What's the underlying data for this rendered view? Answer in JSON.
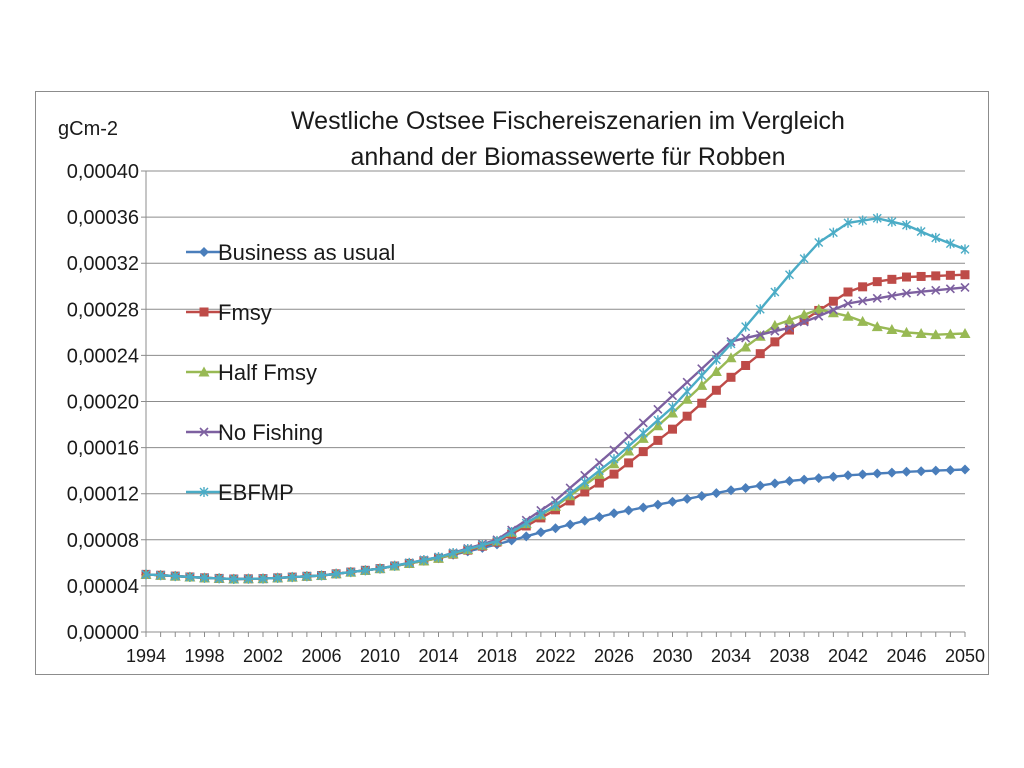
{
  "chart_data": {
    "type": "line",
    "title": [
      "Westliche Ostsee Fischereiszenarien im Vergleich",
      "anhand der Biomassewerte  für Robben"
    ],
    "unit_label": "gCm-2",
    "xlabel": "",
    "ylabel": "gCm-2",
    "x_tick_labels": [
      "1994",
      "1998",
      "2002",
      "2006",
      "2010",
      "2014",
      "2018",
      "2022",
      "2026",
      "2030",
      "2034",
      "2038",
      "2042",
      "2046",
      "2050"
    ],
    "y_tick_labels": [
      "0,00000",
      "0,00004",
      "0,00008",
      "0,00012",
      "0,00016",
      "0,00020",
      "0,00024",
      "0,00028",
      "0,00032",
      "0,00036",
      "0,00040"
    ],
    "xlim": [
      1994,
      2050
    ],
    "ylim": [
      0,
      0.0004
    ],
    "grid": true,
    "legend_position": "left",
    "series": [
      {
        "name": "Business as usual",
        "color": "#4a7ebb",
        "marker": "diamond",
        "points": [
          [
            1994,
            5e-05
          ],
          [
            1998,
            4.7e-05
          ],
          [
            2000,
            4.6e-05
          ],
          [
            2002,
            4.63e-05
          ],
          [
            2006,
            4.9e-05
          ],
          [
            2010,
            5.5e-05
          ],
          [
            2014,
            6.4e-05
          ],
          [
            2018,
            7.6e-05
          ],
          [
            2022,
            9e-05
          ],
          [
            2026,
            0.000103
          ],
          [
            2030,
            0.000113
          ],
          [
            2034,
            0.000123
          ],
          [
            2038,
            0.000131
          ],
          [
            2042,
            0.000136
          ],
          [
            2046,
            0.000139
          ],
          [
            2050,
            0.000141
          ]
        ]
      },
      {
        "name": "Fmsy",
        "color": "#be4b48",
        "marker": "square",
        "points": [
          [
            1994,
            5e-05
          ],
          [
            1998,
            4.7e-05
          ],
          [
            2000,
            4.6e-05
          ],
          [
            2002,
            4.63e-05
          ],
          [
            2006,
            4.9e-05
          ],
          [
            2010,
            5.5e-05
          ],
          [
            2014,
            6.4e-05
          ],
          [
            2018,
            7.8e-05
          ],
          [
            2022,
            0.000106
          ],
          [
            2026,
            0.000137
          ],
          [
            2030,
            0.000176
          ],
          [
            2034,
            0.000221
          ],
          [
            2038,
            0.000262
          ],
          [
            2040,
            0.000279
          ],
          [
            2042,
            0.000295
          ],
          [
            2044,
            0.000304
          ],
          [
            2046,
            0.000308
          ],
          [
            2050,
            0.00031
          ]
        ]
      },
      {
        "name": "Half Fmsy",
        "color": "#98b954",
        "marker": "triangle",
        "points": [
          [
            1994,
            5e-05
          ],
          [
            1998,
            4.7e-05
          ],
          [
            2000,
            4.6e-05
          ],
          [
            2002,
            4.63e-05
          ],
          [
            2006,
            4.9e-05
          ],
          [
            2010,
            5.5e-05
          ],
          [
            2014,
            6.4e-05
          ],
          [
            2018,
            7.9e-05
          ],
          [
            2022,
            0.000109
          ],
          [
            2026,
            0.000146
          ],
          [
            2030,
            0.00019
          ],
          [
            2034,
            0.000238
          ],
          [
            2037,
            0.000266
          ],
          [
            2040,
            0.00028
          ],
          [
            2042,
            0.000274
          ],
          [
            2044,
            0.000265
          ],
          [
            2046,
            0.00026
          ],
          [
            2048,
            0.000258
          ],
          [
            2050,
            0.000259
          ]
        ]
      },
      {
        "name": "No Fishing",
        "color": "#7d60a0",
        "marker": "x",
        "points": [
          [
            1994,
            5e-05
          ],
          [
            1998,
            4.7e-05
          ],
          [
            2000,
            4.6e-05
          ],
          [
            2002,
            4.63e-05
          ],
          [
            2006,
            4.9e-05
          ],
          [
            2010,
            5.5e-05
          ],
          [
            2014,
            6.5e-05
          ],
          [
            2018,
            8e-05
          ],
          [
            2022,
            0.000114
          ],
          [
            2026,
            0.000158
          ],
          [
            2030,
            0.000205
          ],
          [
            2034,
            0.000252
          ],
          [
            2038,
            0.000264
          ],
          [
            2040,
            0.000274
          ],
          [
            2042,
            0.000285
          ],
          [
            2046,
            0.000294
          ],
          [
            2050,
            0.000299
          ]
        ]
      },
      {
        "name": "EBFMP",
        "color": "#4bacc6",
        "marker": "star",
        "points": [
          [
            1994,
            5e-05
          ],
          [
            1998,
            4.7e-05
          ],
          [
            2000,
            4.6e-05
          ],
          [
            2002,
            4.63e-05
          ],
          [
            2006,
            4.9e-05
          ],
          [
            2010,
            5.5e-05
          ],
          [
            2014,
            6.5e-05
          ],
          [
            2018,
            7.9e-05
          ],
          [
            2022,
            0.00011
          ],
          [
            2026,
            0.00015
          ],
          [
            2030,
            0.000195
          ],
          [
            2034,
            0.00025
          ],
          [
            2038,
            0.00031
          ],
          [
            2040,
            0.000338
          ],
          [
            2042,
            0.000355
          ],
          [
            2044,
            0.000359
          ],
          [
            2046,
            0.000353
          ],
          [
            2048,
            0.000342
          ],
          [
            2050,
            0.000332
          ]
        ]
      }
    ]
  }
}
